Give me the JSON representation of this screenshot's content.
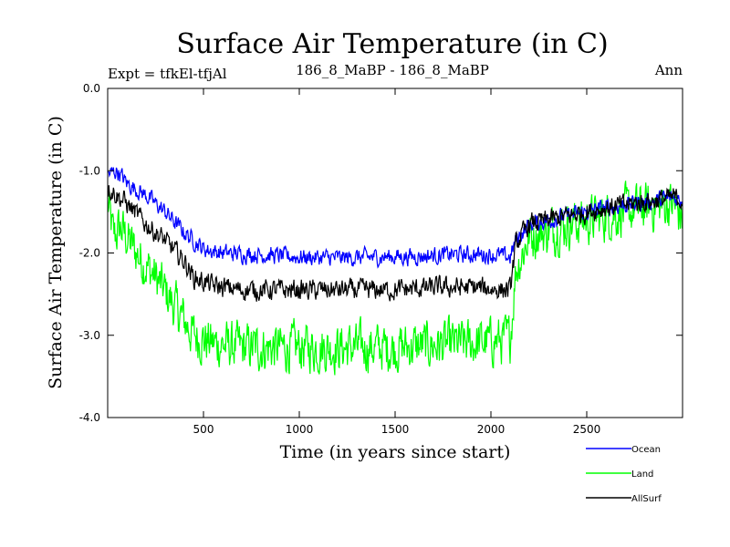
{
  "chart_data": {
    "type": "line",
    "title": "Surface Air Temperature (in C)",
    "subtitle_left": "Expt = tfkEl-tfjAl",
    "subtitle_center": "186_8_MaBP - 186_8_MaBP",
    "subtitle_right": "Ann",
    "xlabel": "Time (in years since start)",
    "ylabel": "Surface Air Temperature (in C)",
    "xlim": [
      0,
      3000
    ],
    "ylim": [
      -4.0,
      0.0
    ],
    "xticks": [
      500,
      1000,
      1500,
      2000,
      2500
    ],
    "yticks": [
      0.0,
      -1.0,
      -2.0,
      -3.0,
      -4.0
    ],
    "xtick_labels": [
      "500",
      "1000",
      "1500",
      "2000",
      "2500"
    ],
    "ytick_labels": [
      "0.0",
      "-1.0",
      "-2.0",
      "-3.0",
      "-4.0"
    ],
    "legend_position": "bottom-right, outside plot",
    "series": [
      {
        "name": "Ocean",
        "color": "#0000ff",
        "noise": 0.1,
        "x": [
          0,
          50,
          100,
          200,
          300,
          400,
          500,
          600,
          800,
          1000,
          1200,
          1400,
          1600,
          1800,
          2000,
          2100,
          2130,
          2200,
          2400,
          2600,
          2800,
          2950,
          3000
        ],
        "y": [
          -1.05,
          -1.0,
          -1.15,
          -1.3,
          -1.5,
          -1.75,
          -1.95,
          -2.0,
          -2.02,
          -2.05,
          -2.06,
          -2.05,
          -2.04,
          -2.02,
          -2.02,
          -2.05,
          -1.85,
          -1.65,
          -1.55,
          -1.45,
          -1.38,
          -1.33,
          -1.35
        ]
      },
      {
        "name": "Land",
        "color": "#00ff00",
        "noise": 0.28,
        "x": [
          0,
          30,
          70,
          150,
          250,
          350,
          450,
          550,
          700,
          900,
          1100,
          1300,
          1500,
          1700,
          1900,
          2100,
          2130,
          2200,
          2400,
          2600,
          2800,
          2950,
          3000
        ],
        "y": [
          -1.4,
          -1.8,
          -1.7,
          -2.0,
          -2.3,
          -2.65,
          -3.0,
          -3.1,
          -3.15,
          -3.15,
          -3.15,
          -3.15,
          -3.15,
          -3.12,
          -3.1,
          -3.05,
          -2.2,
          -1.8,
          -1.65,
          -1.55,
          -1.45,
          -1.4,
          -1.6
        ]
      },
      {
        "name": "AllSurf",
        "color": "#000000",
        "noise": 0.12,
        "x": [
          0,
          50,
          100,
          200,
          300,
          400,
          450,
          550,
          700,
          900,
          1100,
          1300,
          1500,
          1700,
          1900,
          2100,
          2130,
          2200,
          2400,
          2600,
          2800,
          2950,
          3000
        ],
        "y": [
          -1.2,
          -1.3,
          -1.4,
          -1.65,
          -1.85,
          -2.1,
          -2.3,
          -2.4,
          -2.45,
          -2.45,
          -2.45,
          -2.45,
          -2.45,
          -2.42,
          -2.42,
          -2.45,
          -1.9,
          -1.65,
          -1.55,
          -1.45,
          -1.38,
          -1.33,
          -1.35
        ]
      }
    ]
  }
}
